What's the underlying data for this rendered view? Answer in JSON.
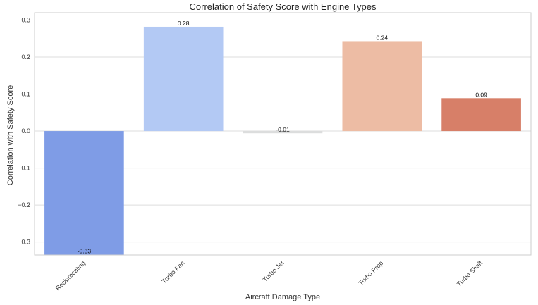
{
  "chart_data": {
    "type": "bar",
    "title": "Correlation of Safety Score with Engine Types",
    "xlabel": "Aircraft Damage Type",
    "ylabel": "Correlation with Safety Score",
    "categories": [
      "Reciprocating",
      "Turbo Fan",
      "Turbo Jet",
      "Turbo Prop",
      "Turbo Shaft"
    ],
    "values": [
      -0.334,
      0.282,
      -0.006,
      0.243,
      0.089
    ],
    "data_labels": [
      "-0.33",
      "0.28",
      "-0.01",
      "0.24",
      "0.09"
    ],
    "ylim": [
      -0.335,
      0.32
    ],
    "yticks": [
      0.3,
      0.2,
      0.1,
      0.0,
      -0.1,
      -0.2,
      -0.3
    ],
    "ytick_labels": [
      "0.3",
      "0.2",
      "0.1",
      "0.0",
      "−0.1",
      "−0.2",
      "−0.3"
    ],
    "grid": "horizontal",
    "legend": "none",
    "colors": [
      "#7f9ce6",
      "#b3c9f4",
      "#dcdddd",
      "#edbca4",
      "#d77f68"
    ]
  }
}
